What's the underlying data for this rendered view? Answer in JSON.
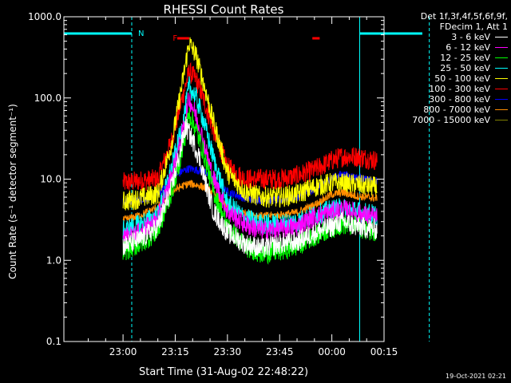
{
  "chart_data": {
    "type": "line",
    "title": "RHESSI Count Rates",
    "xlabel": "Start Time (31-Aug-02 22:48:22)",
    "ylabel": "Count Rate (s⁻¹ detector segment⁻¹)",
    "ylog": true,
    "ylim": [
      0.1,
      1000
    ],
    "xlim_min": [
      -17,
      75
    ],
    "x_ticks": [
      {
        "m": 0,
        "label": "23:00"
      },
      {
        "m": 15,
        "label": "23:15"
      },
      {
        "m": 30,
        "label": "23:30"
      },
      {
        "m": 45,
        "label": "23:45"
      },
      {
        "m": 60,
        "label": "00:00"
      },
      {
        "m": 75,
        "label": "00:15"
      }
    ],
    "y_ticks": [
      {
        "v": 0.1,
        "label": "0.1"
      },
      {
        "v": 1,
        "label": "1.0"
      },
      {
        "v": 10,
        "label": "10.0"
      },
      {
        "v": 100,
        "label": "100.0"
      },
      {
        "v": 1000,
        "label": "1000.0"
      }
    ],
    "grid": false,
    "legend_position": "top-right",
    "legend_header": [
      "Det 1f,3f,4f,5f,6f,9f,",
      "FDecim 1, Att 1"
    ],
    "series": [
      {
        "name": "3 - 6 keV",
        "color": "#ffffff",
        "points": [
          [
            0,
            1.5
          ],
          [
            5,
            1.8
          ],
          [
            10,
            2.6
          ],
          [
            14,
            8
          ],
          [
            16,
            18
          ],
          [
            18,
            45
          ],
          [
            20,
            30
          ],
          [
            22,
            18
          ],
          [
            24,
            8
          ],
          [
            26,
            4
          ],
          [
            30,
            2.2
          ],
          [
            35,
            1.6
          ],
          [
            40,
            1.4
          ],
          [
            45,
            1.6
          ],
          [
            50,
            1.7
          ],
          [
            55,
            2.2
          ],
          [
            60,
            2.6
          ],
          [
            63,
            3
          ],
          [
            67,
            2.6
          ],
          [
            70,
            2.5
          ],
          [
            73,
            2.4
          ]
        ]
      },
      {
        "name": "6 - 12 keV",
        "color": "#ff00ff",
        "points": [
          [
            0,
            1.8
          ],
          [
            5,
            2.2
          ],
          [
            10,
            3.2
          ],
          [
            14,
            11
          ],
          [
            17,
            35
          ],
          [
            19,
            100
          ],
          [
            21,
            60
          ],
          [
            23,
            30
          ],
          [
            26,
            10
          ],
          [
            30,
            4
          ],
          [
            35,
            2.8
          ],
          [
            40,
            2.3
          ],
          [
            45,
            2.4
          ],
          [
            50,
            2.6
          ],
          [
            55,
            3.4
          ],
          [
            60,
            3.9
          ],
          [
            63,
            4.2
          ],
          [
            67,
            3.8
          ],
          [
            70,
            3.5
          ],
          [
            73,
            3.3
          ]
        ]
      },
      {
        "name": "12 - 25 keV",
        "color": "#00ff00",
        "points": [
          [
            0,
            1.3
          ],
          [
            5,
            1.6
          ],
          [
            10,
            2.3
          ],
          [
            14,
            7
          ],
          [
            17,
            22
          ],
          [
            19,
            65
          ],
          [
            21,
            40
          ],
          [
            23,
            22
          ],
          [
            26,
            7
          ],
          [
            30,
            2.6
          ],
          [
            35,
            1.5
          ],
          [
            40,
            1.2
          ],
          [
            45,
            1.3
          ],
          [
            50,
            1.5
          ],
          [
            55,
            2
          ],
          [
            60,
            2.5
          ],
          [
            63,
            2.8
          ],
          [
            67,
            2.6
          ],
          [
            70,
            2.4
          ],
          [
            73,
            2.3
          ]
        ]
      },
      {
        "name": "25 - 50 keV",
        "color": "#00ffff",
        "points": [
          [
            0,
            2.3
          ],
          [
            5,
            2.8
          ],
          [
            10,
            3.6
          ],
          [
            14,
            14
          ],
          [
            17,
            45
          ],
          [
            19,
            140
          ],
          [
            21,
            100
          ],
          [
            23,
            55
          ],
          [
            26,
            18
          ],
          [
            30,
            5
          ],
          [
            35,
            3.3
          ],
          [
            40,
            2.8
          ],
          [
            45,
            2.8
          ],
          [
            50,
            3
          ],
          [
            55,
            3.6
          ],
          [
            60,
            4.2
          ],
          [
            63,
            4.4
          ],
          [
            67,
            4
          ],
          [
            70,
            3.8
          ],
          [
            73,
            3.6
          ]
        ]
      },
      {
        "name": "50 - 100 keV",
        "color": "#ffff00",
        "points": [
          [
            0,
            5.3
          ],
          [
            5,
            5.8
          ],
          [
            10,
            6.6
          ],
          [
            14,
            28
          ],
          [
            17,
            150
          ],
          [
            19,
            480
          ],
          [
            21,
            330
          ],
          [
            23,
            160
          ],
          [
            26,
            50
          ],
          [
            30,
            12
          ],
          [
            35,
            7
          ],
          [
            40,
            6
          ],
          [
            45,
            6
          ],
          [
            50,
            6.5
          ],
          [
            55,
            8
          ],
          [
            60,
            9
          ],
          [
            63,
            8.8
          ],
          [
            67,
            8.6
          ],
          [
            70,
            8.2
          ],
          [
            73,
            8
          ]
        ]
      },
      {
        "name": "100 - 300 keV",
        "color": "#ff0000",
        "points": [
          [
            0,
            9
          ],
          [
            5,
            9.5
          ],
          [
            10,
            10
          ],
          [
            14,
            30
          ],
          [
            17,
            100
          ],
          [
            19,
            210
          ],
          [
            21,
            170
          ],
          [
            23,
            100
          ],
          [
            26,
            40
          ],
          [
            30,
            14
          ],
          [
            35,
            10
          ],
          [
            40,
            10
          ],
          [
            45,
            10
          ],
          [
            50,
            11
          ],
          [
            55,
            13
          ],
          [
            60,
            17
          ],
          [
            63,
            19
          ],
          [
            67,
            19
          ],
          [
            70,
            18
          ],
          [
            73,
            17
          ]
        ]
      },
      {
        "name": "300 - 800 keV",
        "color": "#0000ff",
        "points": [
          [
            0,
            5.2
          ],
          [
            5,
            5.6
          ],
          [
            10,
            6.5
          ],
          [
            14,
            10
          ],
          [
            17,
            12.5
          ],
          [
            19,
            13.5
          ],
          [
            21,
            13
          ],
          [
            23,
            12.5
          ],
          [
            26,
            10
          ],
          [
            30,
            7
          ],
          [
            35,
            5.8
          ],
          [
            40,
            5.5
          ],
          [
            45,
            5.5
          ],
          [
            50,
            6
          ],
          [
            55,
            7.5
          ],
          [
            60,
            10.5
          ],
          [
            63,
            11.5
          ],
          [
            67,
            10.5
          ],
          [
            70,
            9.8
          ],
          [
            73,
            9.5
          ]
        ]
      },
      {
        "name": "800 - 7000 keV",
        "color": "#ff8c00",
        "points": [
          [
            0,
            3.1
          ],
          [
            5,
            3.6
          ],
          [
            10,
            4.5
          ],
          [
            14,
            7
          ],
          [
            17,
            8.2
          ],
          [
            19,
            8.8
          ],
          [
            21,
            8.5
          ],
          [
            23,
            8
          ],
          [
            26,
            6.8
          ],
          [
            30,
            4.5
          ],
          [
            35,
            3.8
          ],
          [
            40,
            3.5
          ],
          [
            45,
            3.6
          ],
          [
            50,
            3.9
          ],
          [
            55,
            4.8
          ],
          [
            60,
            6.5
          ],
          [
            63,
            6.8
          ],
          [
            67,
            6.2
          ],
          [
            70,
            6
          ],
          [
            73,
            5.8
          ]
        ]
      },
      {
        "name": "7000 - 15000 keV",
        "color": "#808000",
        "points": []
      }
    ],
    "flags": [
      {
        "label": "N",
        "color": "#00ffff"
      },
      {
        "label": "F",
        "color": "#ff0000"
      }
    ]
  },
  "timestamp": "19-Oct-2021 02:21"
}
